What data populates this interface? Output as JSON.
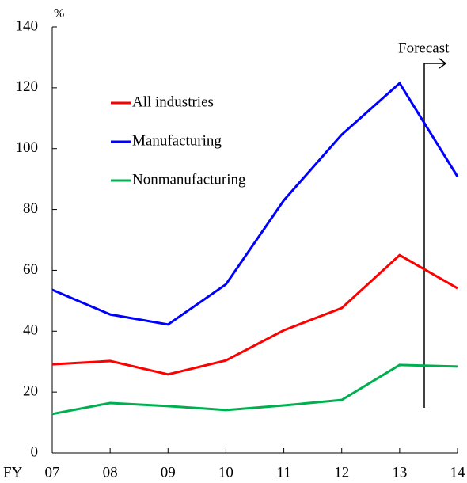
{
  "chart_data": {
    "type": "line",
    "y_label": "%",
    "x_label": "FY",
    "annotation": "Forecast",
    "categories": [
      "07",
      "08",
      "09",
      "10",
      "11",
      "12",
      "13",
      "14"
    ],
    "series": [
      {
        "name": "All industries",
        "color": "#ff0000",
        "values": [
          29.1,
          30.2,
          25.8,
          30.4,
          40.3,
          47.6,
          65,
          54.1
        ]
      },
      {
        "name": "Manufacturing",
        "color": "#0000ff",
        "values": [
          53.6,
          45.5,
          42.2,
          55.4,
          83,
          104.6,
          121.5,
          90.8
        ]
      },
      {
        "name": "Nonmanufacturing",
        "color": "#00b050",
        "values": [
          12.8,
          16.4,
          15.4,
          14.1,
          15.6,
          17.4,
          28.9,
          28.4
        ]
      }
    ],
    "ylim": [
      0,
      140
    ],
    "yticks": [
      0,
      20,
      40,
      60,
      80,
      100,
      120,
      140
    ],
    "grid": false,
    "legend": "upper left"
  }
}
